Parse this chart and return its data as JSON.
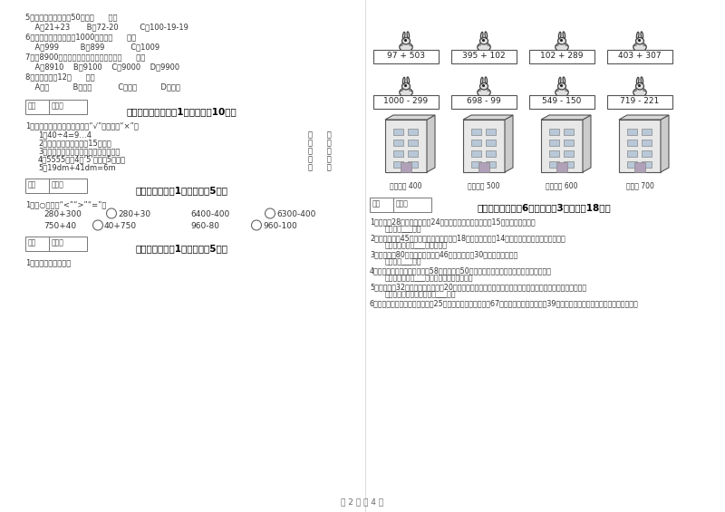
{
  "bg_color": "#ffffff",
  "page_width": 8.0,
  "page_height": 5.65,
  "dpi": 100,
  "left_col": {
    "q5_text": "5．估一估，得数大于50的是（      ）。",
    "q5_a": "    A．21+23       B．72-20         C．100-19-19",
    "q6_text": "6．下面几个数中最接近1000的数是（      ）。",
    "q6_a": "    A．999         B．899           C．1009",
    "q7_text": "7．从8900起一百一百地数，下一个数是（      ）。",
    "q7_a": "    A．8910    B．9100    C．9000    D．9900",
    "q8_text": "8．一块橡皮厕12（      ）。",
    "q8_a": "    A．米          B．分米           C．厘米          D．毫米",
    "sec5_title": "五、判断对与错（共1大题，共计10分）",
    "sec5_intro": "1．火眼金睛，我会判。对的画“√”，错的画“×”。",
    "sec5_items": [
      "1．40÷4=9…4",
      "2．欢欢晚上做作业用了15小时。",
      "3．长方形和正方形的四个角都是直角。",
      "4．5555中的4个‘5’都表示5个一。",
      "5．19dm+41dm=6m"
    ],
    "sec6_title": "六、比一比（共1大题，共计5分）",
    "sec6_intro": "1．在○里填上“<”“>”“=”。",
    "sec7_title": "七、连一连（共1大题，共计5分）",
    "sec7_intro": "1．估一估，连一连。"
  },
  "right_col": {
    "math_row1": [
      "97 + 503",
      "395 + 102",
      "102 + 289",
      "403 + 307"
    ],
    "math_row2": [
      "1000 - 299",
      "698 - 99",
      "549 - 150",
      "719 - 221"
    ],
    "building_labels": [
      "得数接近 400",
      "得数大约 500",
      "得数接近 600",
      "得大约 700"
    ],
    "sec8_title": "八、解决问题（共6小题，每题3分，共计18分）",
    "sec8_q1": "1．小红有28个气球，小芳有24个气球，送给幼儿园小朋友15个，还剩多少个？",
    "sec8_a1": "答：还剩___个。",
    "sec8_q2": "2．商店原来有45顶游泳帽，一天上午卖出18顶，中午又购进14顶，现在商店有多少顶游泳帽？",
    "sec8_a2": "答：现在商店有___顶游泳帽。",
    "sec8_q3": "3．食品店有80听可乐，上午卖了46听，下午卖了30听，还剩多少听？",
    "sec8_a3": "答：还剩___听。",
    "sec8_q4": "4．妈妈和女儿摘红花，妈妈摁58朵，女儿摁50朵，妈妈给女儿几朵，两人的花就一样多？",
    "sec8_a4": "答：妈妈给女儿___朵，两人的花就一样多。",
    "sec8_q5": "5．学校买了32把算币，分给三年级20把，剩下的平均分给二年级和一年级，二年级和一年级各分到多少把？",
    "sec8_a5": "答：二年级和一年级各分到___把。",
    "sec8_q6": "6．实验小学二年级订《数学报》25份，三年级比二年级多计67份，四年级比三年级多计39份，三年级订了多少份？四年级订多少份？",
    "sec8_a6": ""
  },
  "footer": "第 2 页 共 4 页"
}
